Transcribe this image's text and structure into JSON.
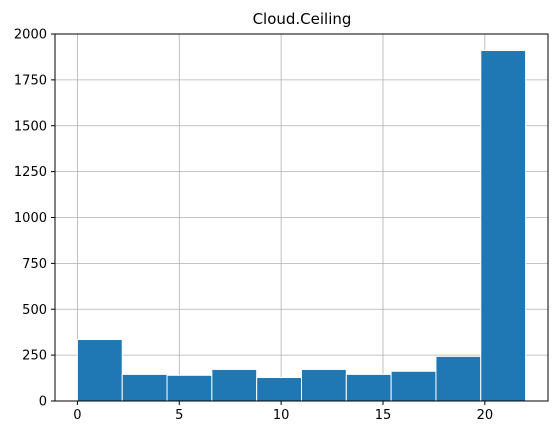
{
  "chart_data": {
    "type": "bar",
    "subtype": "histogram",
    "title": "Cloud.Ceiling",
    "xlabel": "",
    "ylabel": "",
    "xlim": [
      -1.1,
      23.1
    ],
    "ylim": [
      0,
      2000
    ],
    "grid": true,
    "legend": "none",
    "x_ticks": [
      "0",
      "5",
      "10",
      "15",
      "20"
    ],
    "x_tick_values": [
      0,
      5,
      10,
      15,
      20
    ],
    "y_ticks": [
      "0",
      "250",
      "500",
      "750",
      "1000",
      "1250",
      "1500",
      "1750",
      "2000"
    ],
    "y_tick_values": [
      0,
      250,
      500,
      750,
      1000,
      1250,
      1500,
      1750,
      2000
    ],
    "bins": [
      {
        "x0": 0.0,
        "x1": 2.2,
        "value": 335
      },
      {
        "x0": 2.2,
        "x1": 4.4,
        "value": 145
      },
      {
        "x0": 4.4,
        "x1": 6.6,
        "value": 140
      },
      {
        "x0": 6.6,
        "x1": 8.8,
        "value": 172
      },
      {
        "x0": 8.8,
        "x1": 11.0,
        "value": 128
      },
      {
        "x0": 11.0,
        "x1": 13.2,
        "value": 172
      },
      {
        "x0": 13.2,
        "x1": 15.4,
        "value": 145
      },
      {
        "x0": 15.4,
        "x1": 17.6,
        "value": 162
      },
      {
        "x0": 17.6,
        "x1": 19.8,
        "value": 243
      },
      {
        "x0": 19.8,
        "x1": 22.0,
        "value": 1910
      }
    ],
    "colors": {
      "bar": "#1f77b4",
      "bar_edge": "#ffffff",
      "grid": "#b0b0b0",
      "axis": "#000000"
    }
  }
}
